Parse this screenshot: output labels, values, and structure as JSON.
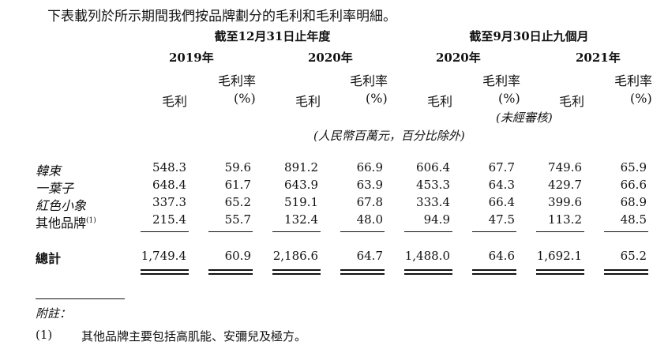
{
  "intro": "下表載列於所示期間我們按品牌劃分的毛利和毛利率明細。",
  "header": {
    "period1": "截至12月31日止年度",
    "period2": "截至9月30日止九個月",
    "years": [
      "2019年",
      "2020年",
      "2020年",
      "2021年"
    ],
    "gp_label": "毛利",
    "gpm_label_line1": "毛利率",
    "gpm_label_line2": "(%)",
    "unaudited": "(未經審核)",
    "unit_note": "(人民幣百萬元，百分比除外)"
  },
  "rows": [
    {
      "label": "韓束",
      "values": [
        "548.3",
        "59.6",
        "891.2",
        "66.9",
        "606.4",
        "67.7",
        "749.6",
        "65.9"
      ]
    },
    {
      "label": "一葉子",
      "values": [
        "648.4",
        "61.7",
        "643.9",
        "63.9",
        "453.3",
        "64.3",
        "429.7",
        "66.6"
      ]
    },
    {
      "label": "紅色小象",
      "values": [
        "337.3",
        "65.2",
        "519.1",
        "67.8",
        "333.4",
        "66.4",
        "399.6",
        "68.9"
      ]
    },
    {
      "label": "其他品牌",
      "sup": "(1)",
      "values": [
        "215.4",
        "55.7",
        "132.4",
        "48.0",
        "94.9",
        "47.5",
        "113.2",
        "48.5"
      ]
    }
  ],
  "total": {
    "label": "總計",
    "values": [
      "1,749.4",
      "60.9",
      "2,186.6",
      "64.7",
      "1,488.0",
      "64.6",
      "1,692.1",
      "65.2"
    ]
  },
  "footnote": {
    "heading": "附註：",
    "marker": "(1)",
    "text": "其他品牌主要包括高肌能、安彌兒及極方。"
  }
}
